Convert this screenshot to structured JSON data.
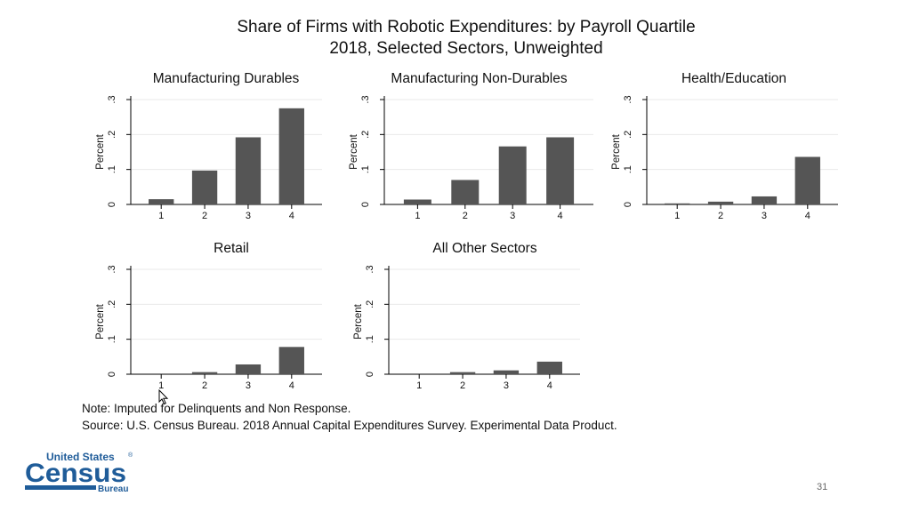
{
  "slide": {
    "title_line1": "Share of Firms with Robotic Expenditures: by Payroll Quartile",
    "title_line2": "2018, Selected Sectors, Unweighted",
    "note": "Note: Imputed for Delinquents and Non Response.",
    "source": "Source: U.S. Census Bureau. 2018 Annual Capital Expenditures Survey. Experimental Data Product.",
    "page_number": "31",
    "logo": {
      "text_top": "United States",
      "registered": "®",
      "text_main": "Census",
      "text_sub": "Bureau",
      "color": "#1f5c99"
    }
  },
  "colors": {
    "bar": "#555555",
    "axis": "#000000",
    "grid": "#eaeaea"
  },
  "chart_data": [
    {
      "type": "bar",
      "title": "Manufacturing Durables",
      "ylabel": "Percent",
      "categories": [
        "1",
        "2",
        "3",
        "4"
      ],
      "values": [
        0.015,
        0.097,
        0.192,
        0.275
      ],
      "ylim": [
        0,
        0.3
      ],
      "yticks": [
        "0",
        ".1",
        ".2",
        ".3"
      ],
      "grid": true
    },
    {
      "type": "bar",
      "title": "Manufacturing Non-Durables",
      "ylabel": "Percent",
      "categories": [
        "1",
        "2",
        "3",
        "4"
      ],
      "values": [
        0.014,
        0.07,
        0.166,
        0.192
      ],
      "ylim": [
        0,
        0.3
      ],
      "yticks": [
        "0",
        ".1",
        ".2",
        ".3"
      ],
      "grid": true
    },
    {
      "type": "bar",
      "title": "Health/Education",
      "ylabel": "Percent",
      "categories": [
        "1",
        "2",
        "3",
        "4"
      ],
      "values": [
        0.003,
        0.008,
        0.023,
        0.136
      ],
      "ylim": [
        0,
        0.3
      ],
      "yticks": [
        "0",
        ".1",
        ".2",
        ".3"
      ],
      "grid": true
    },
    {
      "type": "bar",
      "title": "Retail",
      "ylabel": "Percent",
      "categories": [
        "1",
        "2",
        "3",
        "4"
      ],
      "values": [
        0.0,
        0.006,
        0.028,
        0.078
      ],
      "ylim": [
        0,
        0.3
      ],
      "yticks": [
        "0",
        ".1",
        ".2",
        ".3"
      ],
      "grid": true
    },
    {
      "type": "bar",
      "title": "All Other Sectors",
      "ylabel": "Percent",
      "categories": [
        "1",
        "2",
        "3",
        "4"
      ],
      "values": [
        0.0,
        0.006,
        0.011,
        0.036
      ],
      "ylim": [
        0,
        0.3
      ],
      "yticks": [
        "0",
        ".1",
        ".2",
        ".3"
      ],
      "grid": true
    }
  ]
}
